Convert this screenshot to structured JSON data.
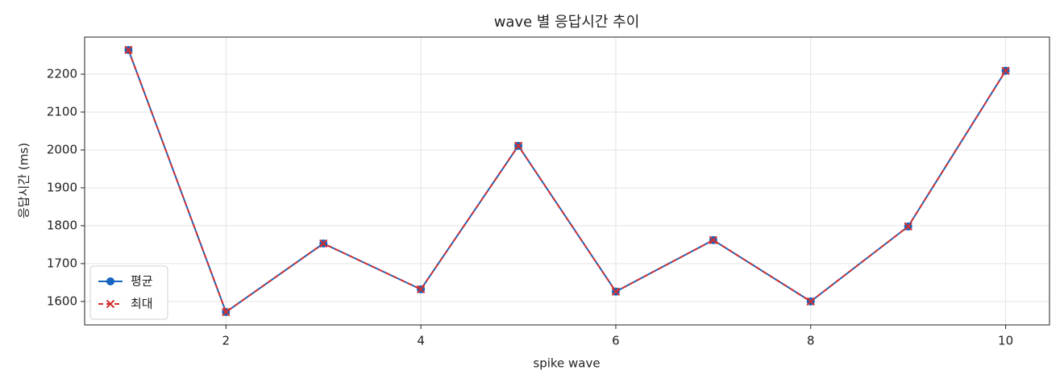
{
  "chart_data": {
    "type": "line",
    "title": "wave 별 응답시간 추이",
    "x_label": "spike wave",
    "y_label": "응답시간 (ms)",
    "x": [
      1,
      2,
      3,
      4,
      5,
      6,
      7,
      8,
      9,
      10
    ],
    "series": [
      {
        "name": "평균",
        "color": "#1565c0",
        "marker": "o",
        "dash": false,
        "values": [
          2264,
          1572,
          1753,
          1632,
          2011,
          1626,
          1762,
          1600,
          1798,
          2209
        ]
      },
      {
        "name": "최대",
        "color": "#d32f2f",
        "marker": "x",
        "dash": true,
        "values": [
          2264,
          1572,
          1753,
          1632,
          2011,
          1626,
          1762,
          1600,
          1798,
          2209
        ]
      }
    ],
    "xlim": [
      0.55,
      10.45
    ],
    "ylim": [
      1538,
      2298
    ],
    "xticks": [
      2,
      4,
      6,
      8,
      10
    ],
    "yticks": [
      1600,
      1700,
      1800,
      1900,
      2000,
      2100,
      2200
    ],
    "grid": true,
    "legend": "lower left"
  }
}
